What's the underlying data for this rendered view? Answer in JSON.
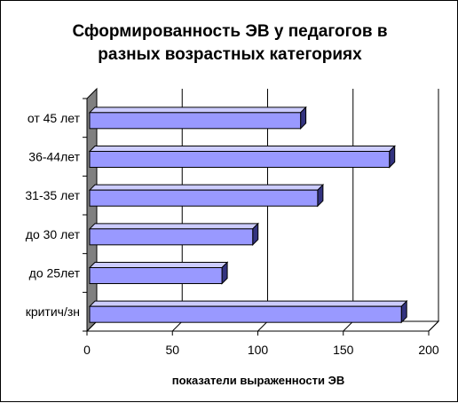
{
  "chart_data": {
    "type": "bar",
    "orientation": "horizontal",
    "title_lines": [
      "Сформированность ЭВ у педагогов в",
      "разных возрастных категориях"
    ],
    "xlabel": "показатели выраженности ЭВ",
    "ylabel": "",
    "categories": [
      "от 45 лет",
      "36-44лет",
      "31-35 лет",
      "до 30 лет",
      "до 25лет",
      "критич/зн"
    ],
    "values": [
      125,
      177,
      135,
      97,
      79,
      184
    ],
    "xlim": [
      0,
      200
    ],
    "xticks": [
      "0",
      "50",
      "100",
      "150",
      "200"
    ],
    "grid": true,
    "legend": "none",
    "style": "3d",
    "colors": {
      "bar_front": "#9999ff",
      "bar_top": "#ccccff",
      "bar_side": "#33337f",
      "bar_outline": "#000000",
      "wall": "#ffffff",
      "floor": "#808080",
      "gridline": "#000000"
    }
  }
}
